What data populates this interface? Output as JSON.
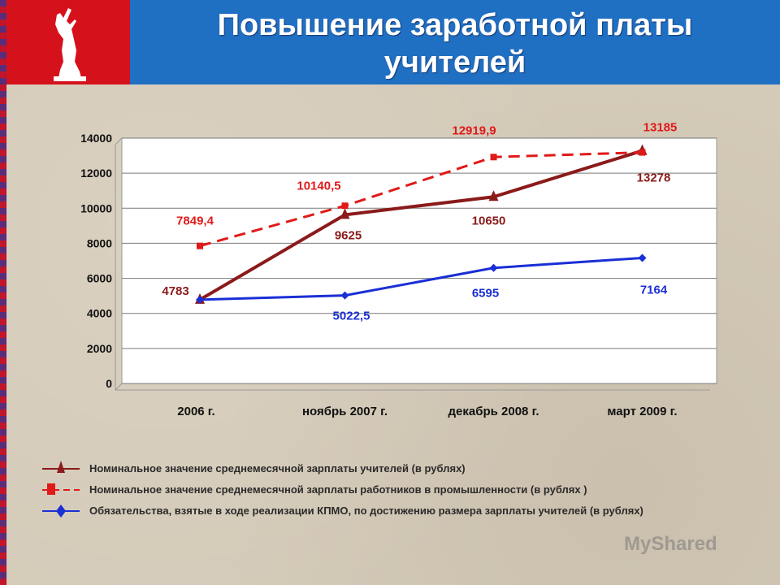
{
  "header": {
    "title_line1": "Повышение заработной платы",
    "title_line2": "учителей"
  },
  "colors": {
    "header_blue": "#1f6fc3",
    "emblem_red": "#d5111b",
    "teacher_series": "#8b1a1a",
    "industry_series": "#e11919",
    "kpmo_series": "#1a2fd6"
  },
  "emblem": {
    "icon": "volgograd-motherland-statue-icon"
  },
  "chart_data": {
    "type": "line",
    "categories": [
      "2006 г.",
      "ноябрь 2007 г.",
      "декабрь 2008 г.",
      "март 2009 г."
    ],
    "ylim": [
      0,
      14000
    ],
    "yticks": [
      0,
      2000,
      4000,
      6000,
      8000,
      10000,
      12000,
      14000
    ],
    "grid": true,
    "legend_position": "bottom",
    "series": [
      {
        "name": "Номинальное значение среднемесячной зарплаты учителей (в рублях)",
        "values": [
          4783,
          9625,
          10650,
          13278
        ],
        "labels": [
          "4783",
          "9625",
          "10650",
          "13278"
        ],
        "color": "#8b1a1a",
        "marker": "triangle",
        "dash": false
      },
      {
        "name": "Номинальное значение среднемесячной зарплаты работников в промышленности (в рублях )",
        "values": [
          7849.4,
          10140.5,
          12919.9,
          13185
        ],
        "labels": [
          "7849,4",
          "10140,5",
          "12919,9",
          "13185"
        ],
        "color": "#e11919",
        "marker": "square",
        "dash": true
      },
      {
        "name": "Обязательства, взятые в ходе реализации КПМО, по достижению размера зарплаты учителей (в рублях)",
        "values": [
          4783,
          5022.5,
          6595,
          7164
        ],
        "labels": [
          "",
          "5022,5",
          "6595",
          "7164"
        ],
        "color": "#1a2fd6",
        "marker": "diamond",
        "dash": false
      }
    ]
  },
  "watermark": "MyShared"
}
